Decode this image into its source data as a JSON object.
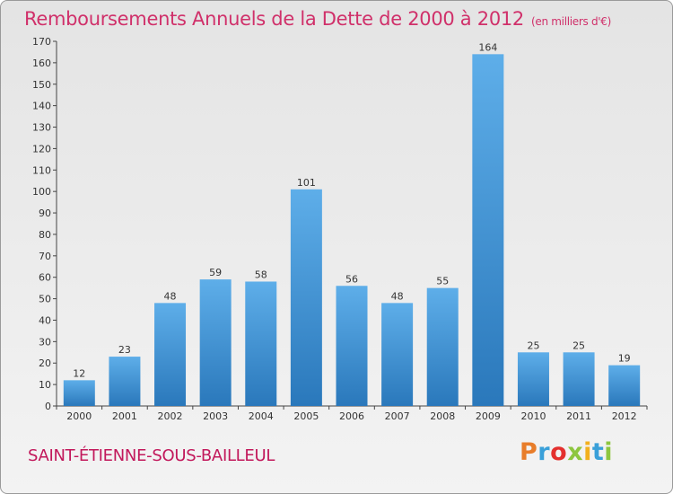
{
  "title": "Remboursements Annuels de la Dette de 2000 à 2012",
  "unit": "(en milliers d'€)",
  "commune": "SAINT-ÉTIENNE-SOUS-BAILLEUL",
  "logo": [
    "P",
    "r",
    "o",
    "x",
    "i",
    "t",
    "i"
  ],
  "chart_data": {
    "type": "bar",
    "categories": [
      "2000",
      "2001",
      "2002",
      "2003",
      "2004",
      "2005",
      "2006",
      "2007",
      "2008",
      "2009",
      "2010",
      "2011",
      "2012"
    ],
    "values": [
      12,
      23,
      48,
      59,
      58,
      101,
      56,
      48,
      55,
      164,
      25,
      25,
      19
    ],
    "ylim": [
      0,
      170
    ],
    "yticks": [
      0,
      10,
      20,
      30,
      40,
      50,
      60,
      70,
      80,
      90,
      100,
      110,
      120,
      130,
      140,
      150,
      160,
      170
    ],
    "bar_color": "#3b8fd3",
    "grid": false
  }
}
